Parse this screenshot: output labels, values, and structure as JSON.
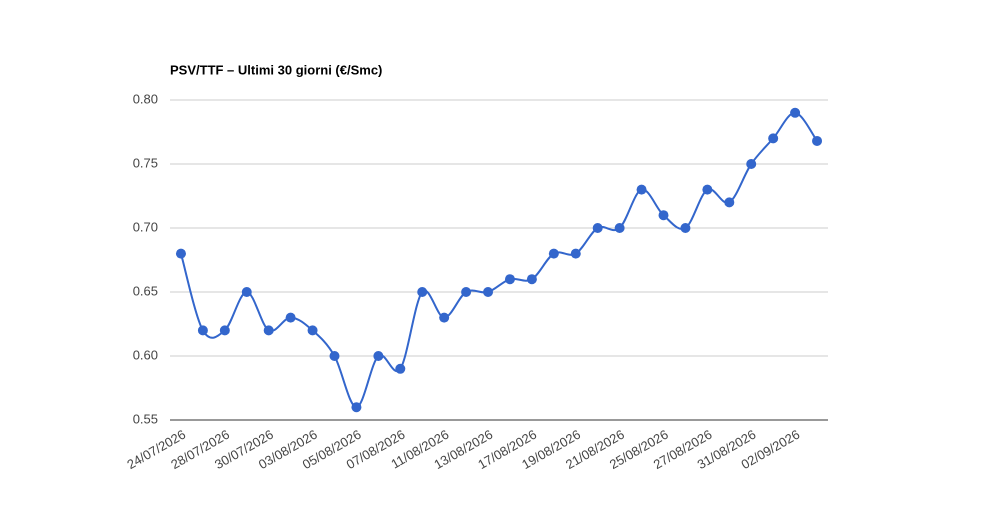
{
  "chart_data": {
    "type": "line",
    "title": "PSV/TTF – Ultimi 30 giorni (€/Smc)",
    "categories": [
      "24/07/2026",
      null,
      "28/07/2026",
      null,
      "30/07/2026",
      null,
      "03/08/2026",
      null,
      "05/08/2026",
      null,
      "07/08/2026",
      null,
      "11/08/2026",
      null,
      "13/08/2026",
      null,
      "17/08/2026",
      null,
      "19/08/2026",
      null,
      "21/08/2026",
      null,
      "25/08/2026",
      null,
      "27/08/2026",
      null,
      "31/08/2026",
      null,
      "02/09/2026",
      null
    ],
    "series": [
      {
        "name": "PSV/TTF",
        "color": "#3366cc",
        "values": [
          0.68,
          0.62,
          0.62,
          0.65,
          0.62,
          0.63,
          0.62,
          0.6,
          0.56,
          0.6,
          0.59,
          0.65,
          0.63,
          0.65,
          0.65,
          0.66,
          0.66,
          0.68,
          0.68,
          0.7,
          0.7,
          0.73,
          0.71,
          0.7,
          0.73,
          0.72,
          0.75,
          0.77,
          0.79,
          0.768
        ]
      }
    ],
    "ylim": [
      0.55,
      0.8
    ],
    "yticks": [
      {
        "value": 0.55,
        "label": "0.55"
      },
      {
        "value": 0.6,
        "label": "0.60"
      },
      {
        "value": 0.65,
        "label": "0.65"
      },
      {
        "value": 0.7,
        "label": "0.70"
      },
      {
        "value": 0.75,
        "label": "0.75"
      },
      {
        "value": 0.8,
        "label": "0.80"
      }
    ],
    "grid": true,
    "smooth": true
  }
}
